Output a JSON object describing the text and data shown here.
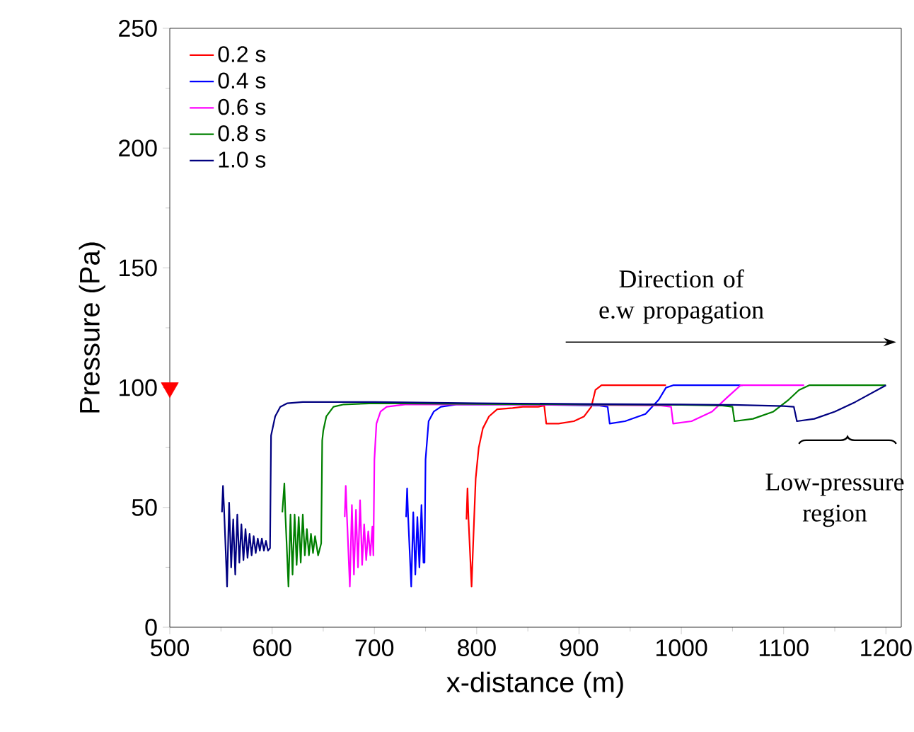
{
  "chart_data": {
    "type": "line",
    "xlabel": "x-distance (m)",
    "ylabel": "Pressure (Pa)",
    "xlim": [
      500,
      1215
    ],
    "ylim": [
      0,
      250
    ],
    "xticks": [
      500,
      600,
      700,
      800,
      900,
      1000,
      1100,
      1200
    ],
    "yticks": [
      0,
      50,
      100,
      150,
      200,
      250
    ],
    "legend": "top left",
    "marker": "none",
    "line_style": "solid",
    "grid": false,
    "annotations": [
      "Direction of e.w propagation",
      "Low-pressure region"
    ],
    "series": [
      {
        "name": "0.2 s",
        "color": "#ff0000",
        "x": [
          790,
          791,
          792,
          795,
          797,
          799,
          802,
          806,
          812,
          820,
          835,
          845,
          860,
          866,
          868,
          880,
          895,
          905,
          912,
          916,
          922,
          985
        ],
        "values": [
          45,
          58,
          45,
          17,
          40,
          62,
          75,
          83,
          88,
          91,
          91.5,
          92,
          92,
          92.5,
          85,
          85,
          86,
          88,
          92,
          99,
          101,
          101
        ]
      },
      {
        "name": "0.4 s",
        "color": "#0000ff",
        "x": [
          731,
          732,
          733,
          736,
          738,
          740,
          742,
          744,
          746,
          748,
          749,
          750,
          753,
          758,
          765,
          780,
          850,
          920,
          928,
          930,
          945,
          965,
          978,
          985,
          992,
          1060
        ],
        "values": [
          46,
          58,
          46,
          17,
          48,
          22,
          46,
          25,
          51,
          27,
          27,
          70,
          86,
          90,
          92,
          93,
          93,
          92.5,
          92,
          85,
          86,
          89,
          95,
          100,
          101,
          101
        ]
      },
      {
        "name": "0.6 s",
        "color": "#ff00ff",
        "x": [
          671,
          672,
          673,
          676,
          678,
          680,
          682,
          684,
          686,
          688,
          690,
          692,
          694,
          696,
          698,
          699,
          700,
          702,
          706,
          712,
          730,
          800,
          900,
          980,
          990,
          992,
          1010,
          1030,
          1045,
          1058,
          1120
        ],
        "values": [
          46,
          59,
          48,
          17,
          51,
          22,
          49,
          25,
          53,
          26,
          43,
          28,
          40,
          30,
          42,
          30,
          70,
          85,
          90,
          92,
          93,
          93,
          92.8,
          92.5,
          92,
          85,
          86,
          90,
          96,
          101,
          101
        ]
      },
      {
        "name": "0.8 s",
        "color": "#008000",
        "x": [
          610,
          612,
          613,
          616,
          618,
          620,
          622,
          624,
          626,
          628,
          630,
          632,
          634,
          636,
          638,
          640,
          642,
          645,
          648,
          649,
          650,
          653,
          660,
          670,
          700,
          800,
          900,
          1000,
          1040,
          1050,
          1052,
          1070,
          1090,
          1105,
          1115,
          1125,
          1200
        ],
        "values": [
          48,
          60,
          47,
          17,
          47,
          22,
          47,
          26,
          46,
          27,
          47,
          30,
          41,
          30,
          39,
          31,
          38,
          30,
          35,
          78,
          82,
          88,
          92,
          93,
          93.5,
          93.2,
          93,
          92.8,
          92.5,
          92,
          86,
          87,
          90,
          95,
          99,
          101,
          101
        ]
      },
      {
        "name": "1.0 s",
        "color": "#000080",
        "x": [
          551,
          552,
          553,
          556,
          558,
          560,
          562,
          564,
          566,
          568,
          570,
          572,
          574,
          576,
          578,
          580,
          582,
          584,
          586,
          588,
          590,
          592,
          594,
          596,
          598,
          599,
          600,
          603,
          608,
          615,
          630,
          700,
          800,
          900,
          1000,
          1050,
          1100,
          1110,
          1113,
          1130,
          1150,
          1170,
          1185,
          1200
        ],
        "values": [
          48,
          59,
          50,
          17,
          52,
          25,
          45,
          22,
          47,
          27,
          43,
          28,
          41,
          29,
          39,
          30,
          38,
          31,
          37,
          32,
          37,
          32,
          36,
          32,
          33,
          80,
          82,
          88,
          92,
          93.5,
          94,
          94,
          93.5,
          93.2,
          93,
          92.8,
          92.3,
          92,
          86,
          87,
          90,
          94,
          97.5,
          101
        ]
      },
      {
        "type": "scatter",
        "color": "#ff0000",
        "marker": "triangle",
        "x": [
          500
        ],
        "values": [
          100
        ]
      }
    ]
  }
}
